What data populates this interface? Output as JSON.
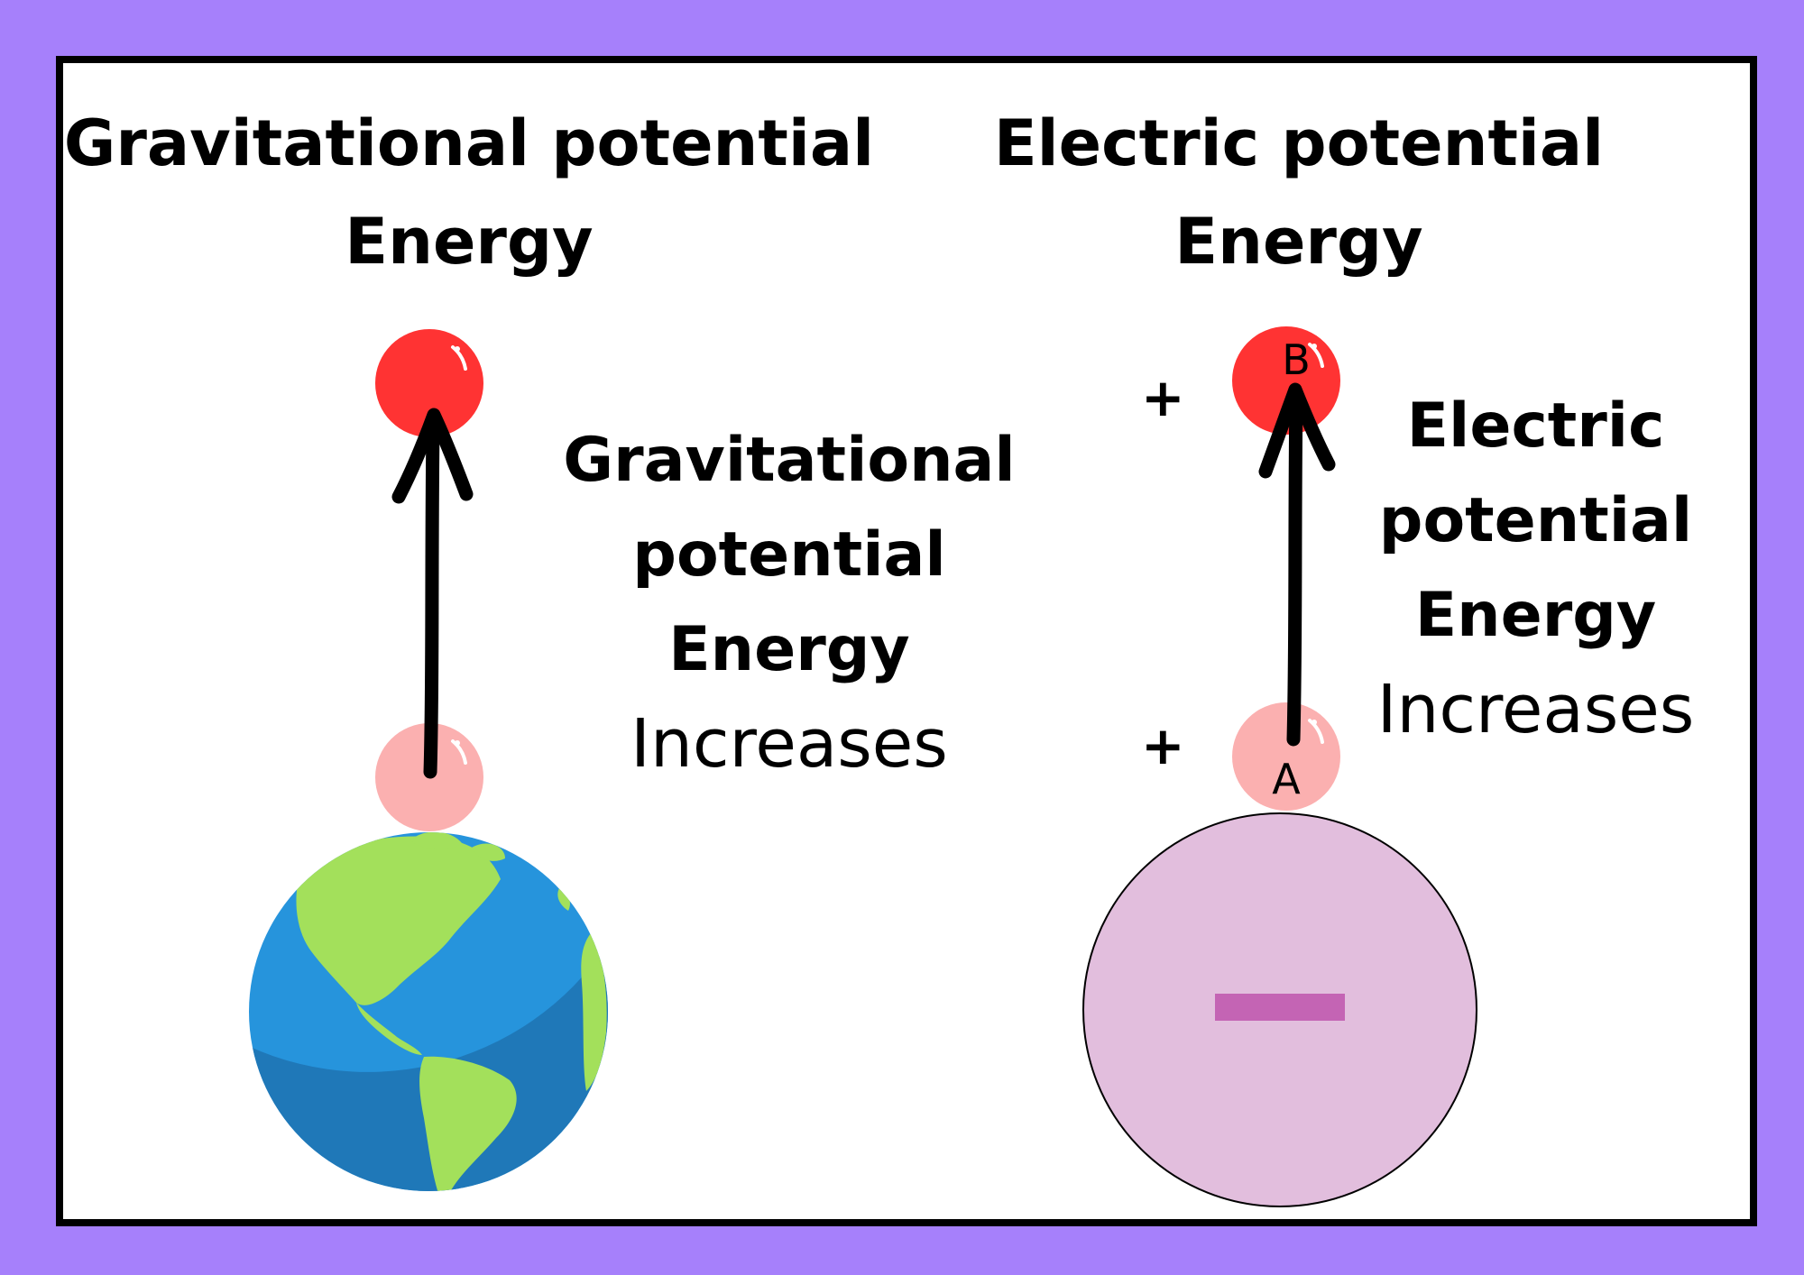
{
  "gravitational": {
    "title_line1": "Gravitational potential",
    "title_line2": "Energy",
    "side_line1": "Gravitational",
    "side_line2": "potential",
    "side_line3": "Energy",
    "side_line4": "Increases"
  },
  "electric": {
    "title_line1": "Electric potential",
    "title_line2": "Energy",
    "side_line1": "Electric",
    "side_line2": "potential",
    "side_line3": "Energy",
    "side_line4": "Increases",
    "label_top": "B",
    "label_bottom": "A",
    "plus_top": "+",
    "plus_bottom": "+"
  },
  "colors": {
    "background": "#a680fb",
    "charge_high": "#ff3333",
    "charge_low": "#fbb0b0",
    "ocean": "#2694dc",
    "land": "#a3e05b",
    "negative_sphere": "#e2bedd",
    "minus_sign": "#c464b4"
  }
}
